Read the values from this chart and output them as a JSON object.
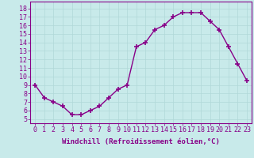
{
  "x": [
    0,
    1,
    2,
    3,
    4,
    5,
    6,
    7,
    8,
    9,
    10,
    11,
    12,
    13,
    14,
    15,
    16,
    17,
    18,
    19,
    20,
    21,
    22,
    23
  ],
  "y": [
    9.0,
    7.5,
    7.0,
    6.5,
    5.5,
    5.5,
    6.0,
    6.5,
    7.5,
    8.5,
    9.0,
    13.5,
    14.0,
    15.5,
    16.0,
    17.0,
    17.5,
    17.5,
    17.5,
    16.5,
    15.5,
    13.5,
    11.5,
    9.5
  ],
  "line_color": "#880088",
  "marker": "+",
  "markersize": 4,
  "linewidth": 1.0,
  "xlabel": "Windchill (Refroidissement éolien,°C)",
  "xlabel_fontsize": 6.5,
  "ylabel_ticks": [
    5,
    6,
    7,
    8,
    9,
    10,
    11,
    12,
    13,
    14,
    15,
    16,
    17,
    18
  ],
  "xlim": [
    -0.5,
    23.5
  ],
  "ylim": [
    4.5,
    18.8
  ],
  "bg_color": "#c8eaea",
  "grid_color": "#b0d8d8",
  "tick_fontsize": 6.0,
  "tick_color": "#880088"
}
